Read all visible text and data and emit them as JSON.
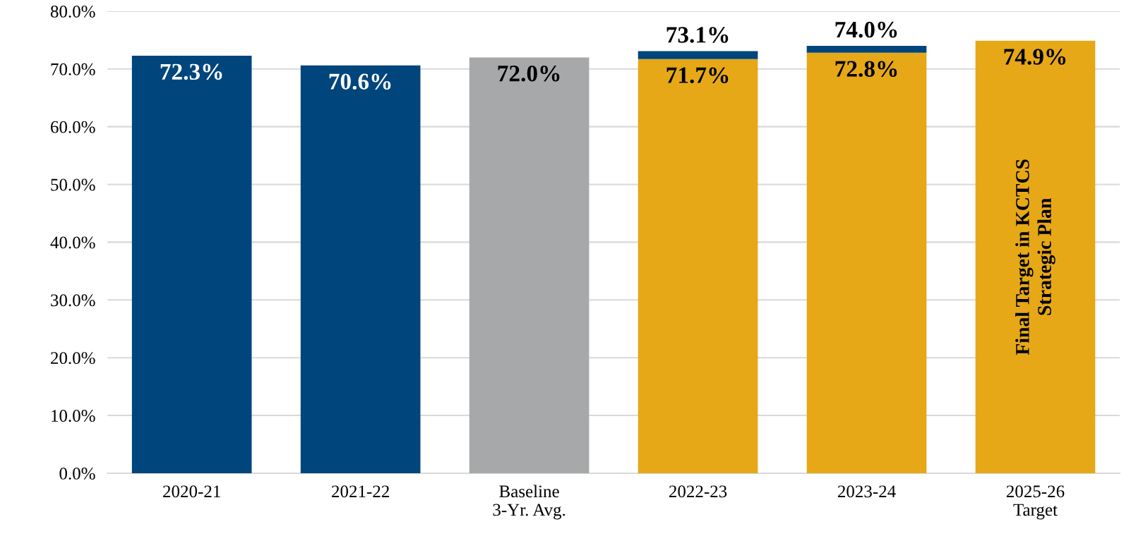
{
  "chart_data": {
    "type": "bar",
    "stacked": true,
    "categories": [
      "2020-21",
      "2021-22",
      "Baseline\n3-Yr. Avg.",
      "2022-23",
      "2023-24",
      "2025-26\nTarget"
    ],
    "series": [
      {
        "colors": [
          "#00457c",
          "#00457c",
          "#a7a8aa",
          "#e6a817",
          "#e6a817",
          "#e6a817"
        ],
        "values": [
          72.3,
          70.6,
          72.0,
          71.7,
          72.8,
          74.9
        ],
        "value_labels": [
          "72.3%",
          "70.6%",
          "72.0%",
          "71.7%",
          "72.8%",
          "74.9%"
        ]
      },
      {
        "color": "#00457c",
        "values": [
          null,
          null,
          null,
          1.4,
          1.2,
          null
        ]
      }
    ],
    "totals": [
      null,
      null,
      null,
      "73.1%",
      "74.0%",
      null
    ],
    "annotations": [
      "Final Target in KCTCS\nStrategic Plan"
    ],
    "ylim": [
      0,
      80
    ],
    "yticks": [
      {
        "value": 0,
        "label": "0.0%"
      },
      {
        "value": 10,
        "label": "10.0%"
      },
      {
        "value": 20,
        "label": "20.0%"
      },
      {
        "value": 30,
        "label": "30.0%"
      },
      {
        "value": 40,
        "label": "40.0%"
      },
      {
        "value": 50,
        "label": "50.0%"
      },
      {
        "value": 60,
        "label": "60.0%"
      },
      {
        "value": 70,
        "label": "70.0%"
      },
      {
        "value": 80,
        "label": "80.0%"
      }
    ],
    "grid": "y",
    "legend": false
  }
}
